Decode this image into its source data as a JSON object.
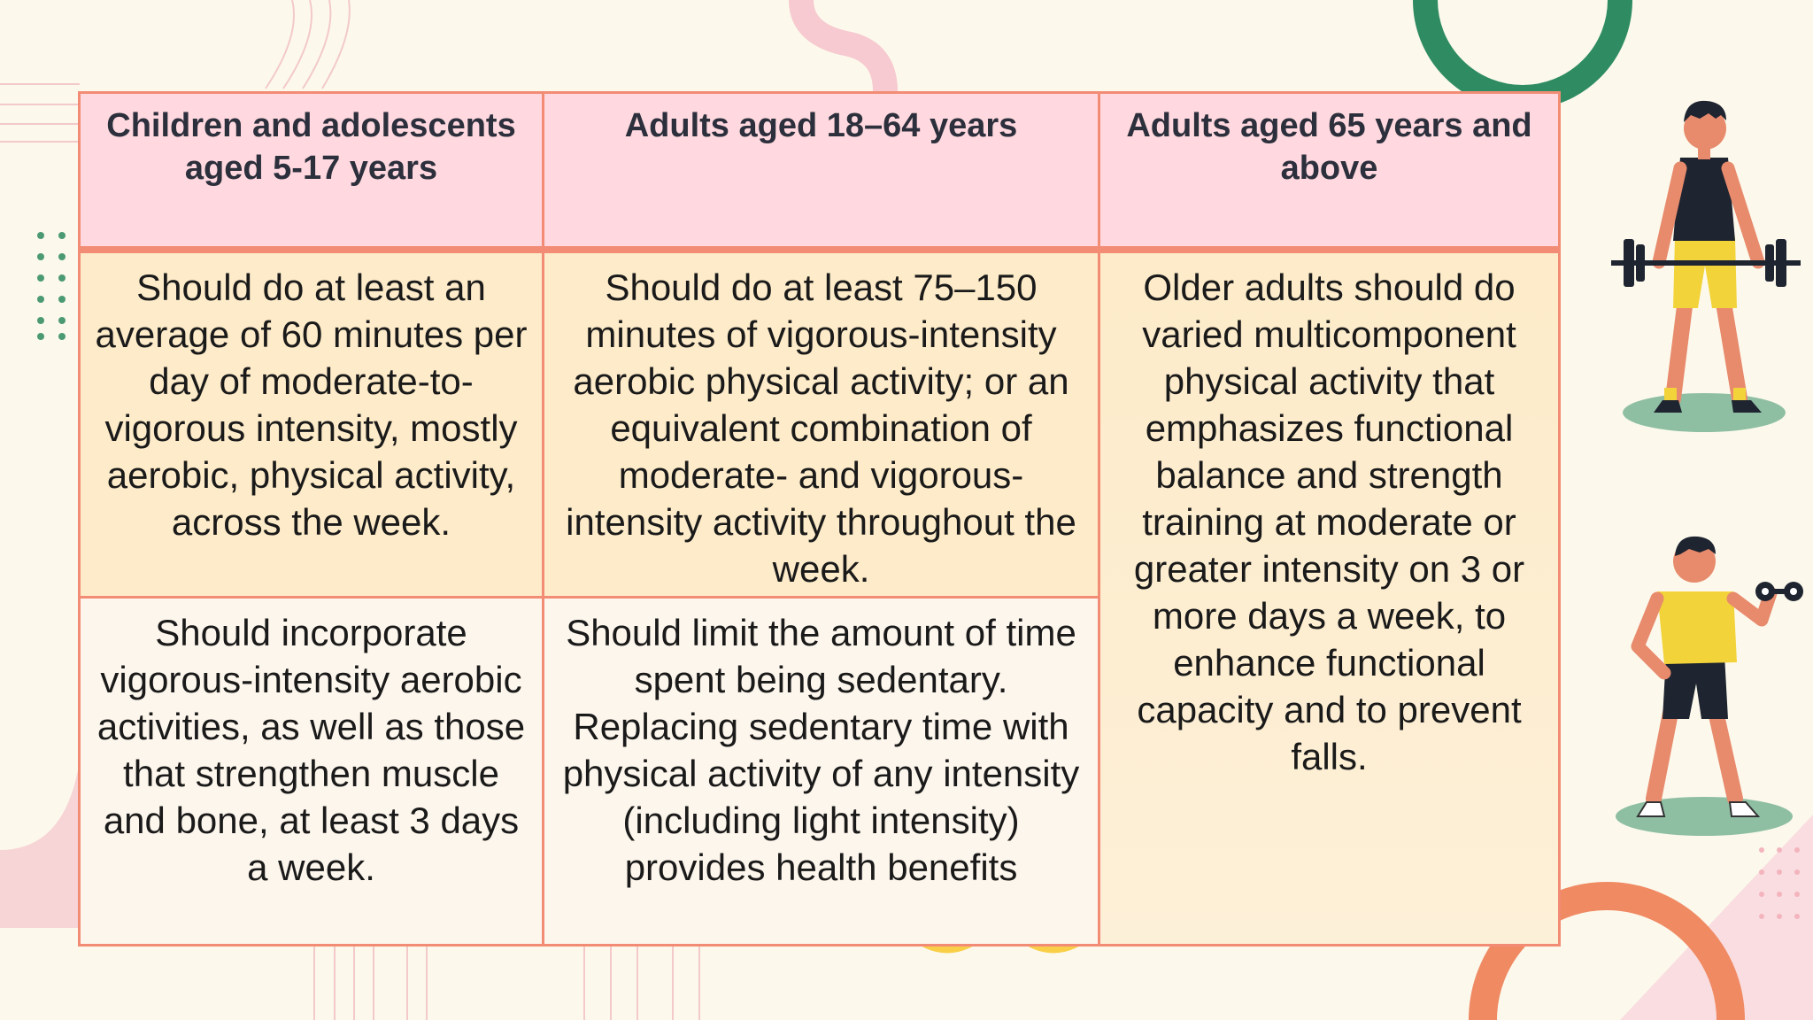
{
  "table": {
    "headers": [
      "Children and adolescents aged 5-17 years",
      "Adults aged 18–64 years",
      "Adults aged 65 years and above"
    ],
    "rows": [
      [
        "Should do at least an average of 60 minutes per day of moderate-to-vigorous intensity, mostly aerobic, physical activity, across the week.",
        "Should do at least 75–150 minutes of vigorous-intensity aerobic physical activity; or an equivalent combination of moderate- and vigorous-intensity activity throughout the week.",
        "Older adults should do varied multicomponent physical activity that emphasizes functional balance and strength training at moderate or greater intensity on 3 or more days a week, to enhance functional capacity and to prevent falls."
      ],
      [
        "Should incorporate vigorous-intensity aerobic activities, as well as those that strengthen muscle and bone, at least 3 days a week.",
        "Should limit the amount of time spent being sedentary. Replacing sedentary time with physical activity of any intensity (including light intensity) provides health benefits"
      ]
    ]
  },
  "colors": {
    "background": "#fcf9ec",
    "border": "#f28c75",
    "header_bg": "#ffd9df",
    "cell_warm": "#fdebc9",
    "cell_light": "#fdf6ec",
    "accent_green": "#2e8b62",
    "accent_pink": "#f7c9d0",
    "accent_orange": "#f08a63",
    "accent_yellow": "#f9cf48"
  },
  "illustrations": [
    "weightlifter-barbell-illustration",
    "man-dumbbell-illustration"
  ]
}
